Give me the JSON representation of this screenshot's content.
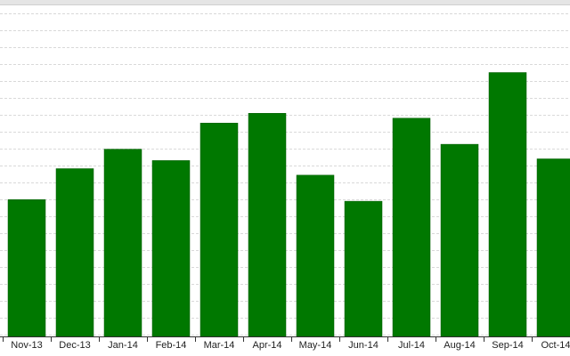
{
  "chart_data": {
    "type": "bar",
    "categories": [
      "Nov-13",
      "Dec-13",
      "Jan-14",
      "Feb-14",
      "Mar-14",
      "Apr-14",
      "May-14",
      "Jun-14",
      "Jul-14",
      "Aug-14",
      "Sep-14",
      "Oct-14"
    ],
    "values": [
      42.0,
      51.5,
      57.5,
      54.0,
      65.5,
      68.5,
      49.5,
      41.5,
      67.0,
      59.0,
      81.0,
      54.5
    ],
    "title": "",
    "xlabel": "",
    "ylabel": "",
    "ylim": [
      0,
      100
    ],
    "grid": true
  },
  "colors": {
    "bar": "#007800",
    "bar_edge": "#005a00",
    "grid": "#d9d9d9",
    "axis": "#333333",
    "top_border": "#cfcfcf",
    "top_band": "#e5e5e5",
    "background": "#ffffff"
  }
}
